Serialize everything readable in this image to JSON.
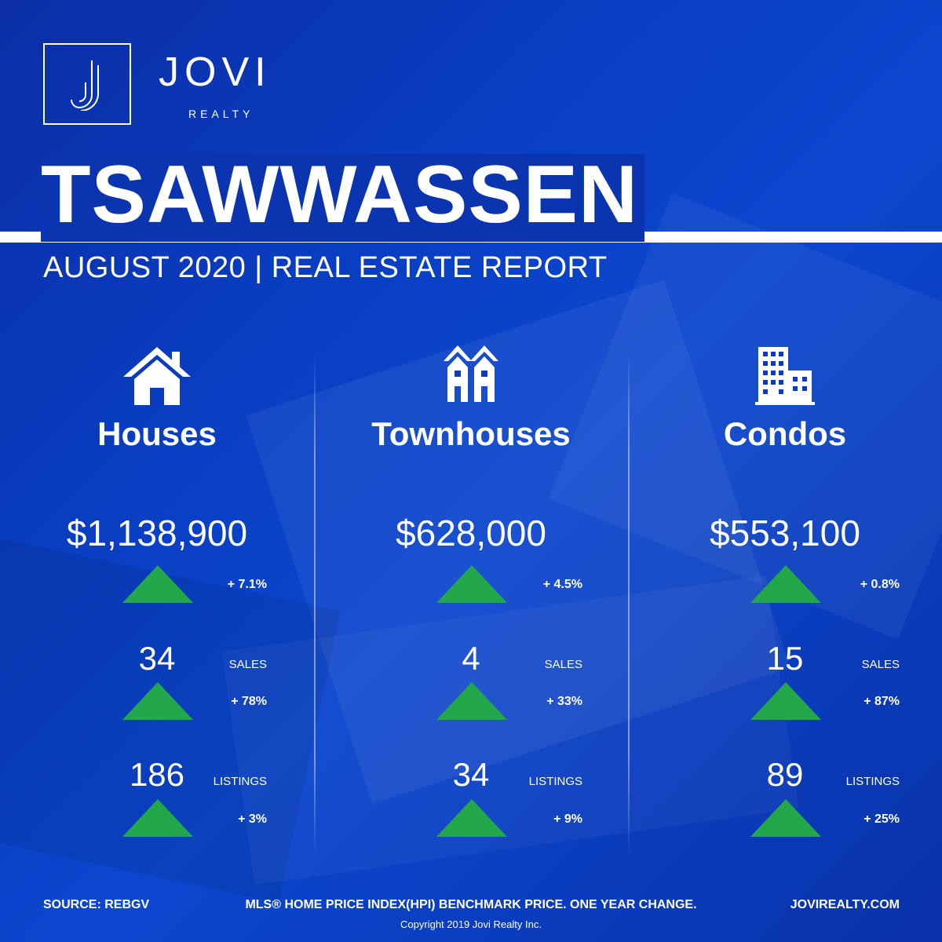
{
  "brand": {
    "name": "JOVI",
    "sub": "REALTY",
    "logo_letter": "J"
  },
  "header": {
    "title": "TSAWWASSEN",
    "subtitle": "AUGUST 2020 | REAL ESTATE REPORT"
  },
  "colors": {
    "background": "#0b3ac0",
    "arrow_up": "#22a84a",
    "text": "#ffffff"
  },
  "columns": [
    {
      "icon": "house-icon",
      "name": "Houses",
      "price": "$1,138,900",
      "price_change": "+ 7.1%",
      "sales": "34",
      "sales_label": "SALES",
      "sales_change": "+ 78%",
      "listings": "186",
      "listings_label": "LISTINGS",
      "listings_change": "+ 3%"
    },
    {
      "icon": "townhouse-icon",
      "name": "Townhouses",
      "price": "$628,000",
      "price_change": "+ 4.5%",
      "sales": "4",
      "sales_label": "SALES",
      "sales_change": "+ 33%",
      "listings": "34",
      "listings_label": "LISTINGS",
      "listings_change": "+ 9%"
    },
    {
      "icon": "condo-building-icon",
      "name": "Condos",
      "price": "$553,100",
      "price_change": "+ 0.8%",
      "sales": "15",
      "sales_label": "SALES",
      "sales_change": "+ 87%",
      "listings": "89",
      "listings_label": "LISTINGS",
      "listings_change": "+ 25%"
    }
  ],
  "footer": {
    "source": "SOURCE:  REBGV",
    "note": "MLS® HOME PRICE INDEX(HPI) BENCHMARK PRICE. ONE YEAR CHANGE.",
    "website": "JOVIREALTY.COM",
    "copyright": "Copyright 2019 Jovi Realty Inc."
  }
}
